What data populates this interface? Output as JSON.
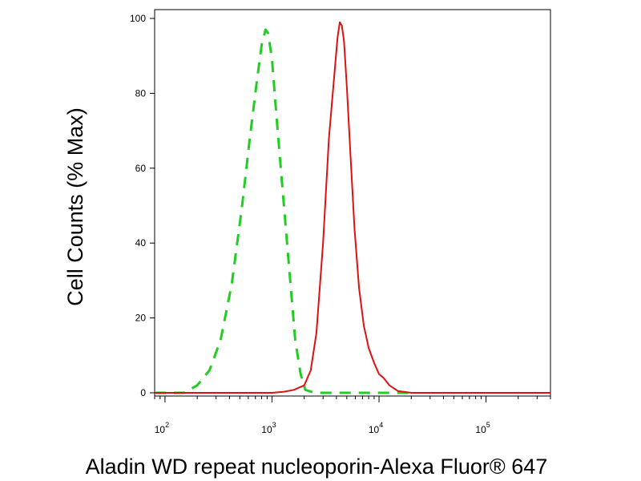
{
  "chart_data": {
    "type": "line",
    "xlabel": "Aladin WD repeat nucleoporin-Alexa Fluor® 647",
    "ylabel": "Cell Counts (% Max)",
    "xscale": "log",
    "xlim": [
      80,
      400000
    ],
    "ylim": [
      0,
      100
    ],
    "x_ticks": [
      {
        "value": 100,
        "base": "10",
        "exp": "2"
      },
      {
        "value": 1000,
        "base": "10",
        "exp": "3"
      },
      {
        "value": 10000,
        "base": "10",
        "exp": "4"
      },
      {
        "value": 100000,
        "base": "10",
        "exp": "5"
      }
    ],
    "y_ticks": [
      0,
      20,
      40,
      60,
      80,
      100
    ],
    "series": [
      {
        "color": "#22cc22",
        "dash": "dashed",
        "x": [
          80,
          150,
          200,
          260,
          330,
          420,
          520,
          620,
          720,
          800,
          870,
          920,
          1000,
          1100,
          1250,
          1450,
          1650,
          1850,
          2050,
          2500,
          3500,
          6000,
          20000
        ],
        "y": [
          0,
          0,
          2,
          6,
          14,
          29,
          49,
          68,
          83,
          93,
          97,
          96,
          89,
          74,
          55,
          33,
          14,
          5,
          0.8,
          0,
          0,
          0,
          0
        ]
      },
      {
        "color": "#dd1111",
        "dash": "solid",
        "x": [
          80,
          1000,
          1300,
          1600,
          2000,
          2300,
          2600,
          3000,
          3400,
          3800,
          4100,
          4300,
          4500,
          4700,
          5000,
          5400,
          5900,
          6500,
          7200,
          8000,
          9000,
          10000,
          11000,
          12500,
          15000,
          20000,
          100000,
          400000
        ],
        "y": [
          0,
          0,
          0.3,
          0.8,
          2,
          6,
          16,
          40,
          68,
          84,
          95,
          99,
          98,
          94,
          82,
          64,
          44,
          28,
          18,
          12,
          8,
          5,
          4,
          2,
          0.5,
          0,
          0,
          0
        ]
      }
    ]
  }
}
